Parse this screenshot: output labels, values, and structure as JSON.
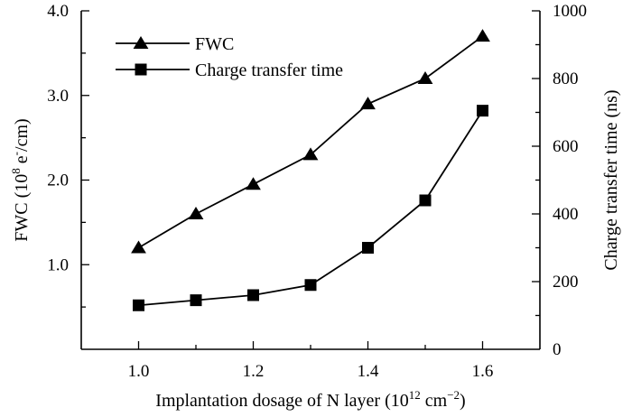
{
  "chart_data": {
    "type": "line",
    "x": [
      1.0,
      1.1,
      1.2,
      1.3,
      1.4,
      1.5,
      1.6
    ],
    "xlim": [
      0.9,
      1.7
    ],
    "x_ticks": [
      1.0,
      1.2,
      1.4,
      1.6
    ],
    "x_tick_labels": [
      "1.0",
      "1.2",
      "1.4",
      "1.6"
    ],
    "xlabel": {
      "main": "Implantation dosage of N layer (10",
      "sup1": "12",
      "mid": " cm",
      "sup2": "−2",
      "end": ")"
    },
    "y_left": {
      "lim": [
        0.0,
        4.0
      ],
      "ticks": [
        1.0,
        2.0,
        3.0,
        4.0
      ],
      "tick_labels": [
        "1.0",
        "2.0",
        "3.0",
        "4.0"
      ],
      "label": {
        "main": "FWC (10",
        "sup1": "8",
        "mid": " e",
        "sup2": "-",
        "end": "/cm)"
      }
    },
    "y_right": {
      "lim": [
        0,
        1000
      ],
      "ticks": [
        0,
        200,
        400,
        600,
        800,
        1000
      ],
      "tick_labels": [
        "0",
        "200",
        "400",
        "600",
        "800",
        "1000"
      ],
      "label": "Charge transfer time (ns)"
    },
    "series": [
      {
        "name": "FWC",
        "axis": "left",
        "marker": "triangle",
        "values": [
          1.2,
          1.6,
          1.95,
          2.3,
          2.9,
          3.2,
          3.7
        ]
      },
      {
        "name": "Charge transfer time",
        "axis": "right",
        "marker": "square",
        "values": [
          130,
          145,
          160,
          190,
          300,
          440,
          705
        ]
      }
    ],
    "legend_position": "top-left",
    "grid": false
  }
}
